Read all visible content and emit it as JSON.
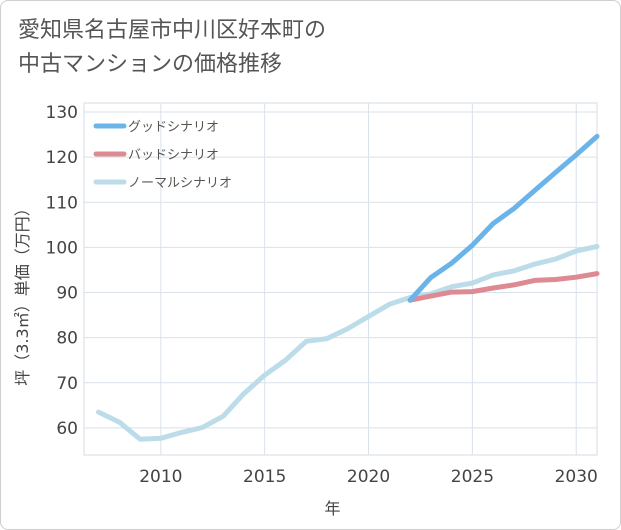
{
  "title_lines": [
    "愛知県名古屋市中川区好本町の",
    "中古マンションの価格推移"
  ],
  "chart_data": {
    "type": "line",
    "title": "愛知県名古屋市中川区好本町の中古マンションの価格推移",
    "xlabel": "年",
    "ylabel": "坪（3.3㎡）単価（万円）",
    "xlim": [
      2006.3,
      2031
    ],
    "ylim": [
      54,
      132
    ],
    "xticks": [
      2010,
      2015,
      2020,
      2025,
      2030
    ],
    "yticks": [
      60,
      70,
      80,
      90,
      100,
      110,
      120,
      130
    ],
    "grid": true,
    "legend_position": "top-left",
    "series": [
      {
        "name": "グッドシナリオ",
        "color": "#6ab4ea",
        "x": [
          2022,
          2023,
          2024,
          2025,
          2026,
          2027,
          2028,
          2029,
          2030,
          2031
        ],
        "y": [
          88.3,
          93.3,
          96.5,
          100.5,
          105.3,
          108.6,
          112.6,
          116.6,
          120.5,
          124.6
        ]
      },
      {
        "name": "バッドシナリオ",
        "color": "#dd8a93",
        "x": [
          2022,
          2023,
          2024,
          2025,
          2026,
          2027,
          2028,
          2029,
          2030,
          2031
        ],
        "y": [
          88.3,
          89.2,
          90.1,
          90.2,
          91.0,
          91.7,
          92.7,
          92.9,
          93.4,
          94.2
        ]
      },
      {
        "name": "ノーマルシナリオ",
        "color": "#bcdcea",
        "x": [
          2007,
          2008,
          2009,
          2010,
          2011,
          2012,
          2013,
          2014,
          2015,
          2016,
          2017,
          2018,
          2019,
          2020,
          2021,
          2022,
          2023,
          2024,
          2025,
          2026,
          2027,
          2028,
          2029,
          2030,
          2031
        ],
        "y": [
          63.5,
          61.3,
          57.5,
          57.7,
          59.0,
          60.1,
          62.6,
          67.6,
          71.7,
          75.0,
          79.2,
          79.8,
          82.0,
          84.7,
          87.4,
          88.9,
          89.7,
          91.3,
          92.1,
          93.9,
          94.8,
          96.3,
          97.4,
          99.2,
          100.2
        ]
      }
    ]
  }
}
